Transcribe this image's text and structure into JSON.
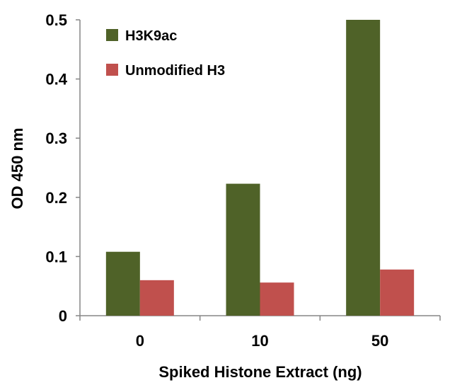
{
  "chart_data": {
    "type": "bar",
    "categories": [
      "0",
      "10",
      "50"
    ],
    "series": [
      {
        "name": "H3K9ac",
        "values": [
          0.108,
          0.223,
          0.5
        ],
        "color": "#4f6228"
      },
      {
        "name": "Unmodified H3",
        "values": [
          0.06,
          0.056,
          0.078
        ],
        "color": "#c0504d"
      }
    ],
    "xlabel": "Spiked Histone Extract (ng)",
    "ylabel": "OD 450 nm",
    "ylim": [
      0,
      0.5
    ],
    "yticks": [
      0,
      0.1,
      0.2,
      0.3,
      0.4,
      0.5
    ],
    "ytick_labels": [
      "0",
      "0.1",
      "0.2",
      "0.3",
      "0.4",
      "0.5"
    ],
    "grid": false,
    "legend": "top-left"
  }
}
